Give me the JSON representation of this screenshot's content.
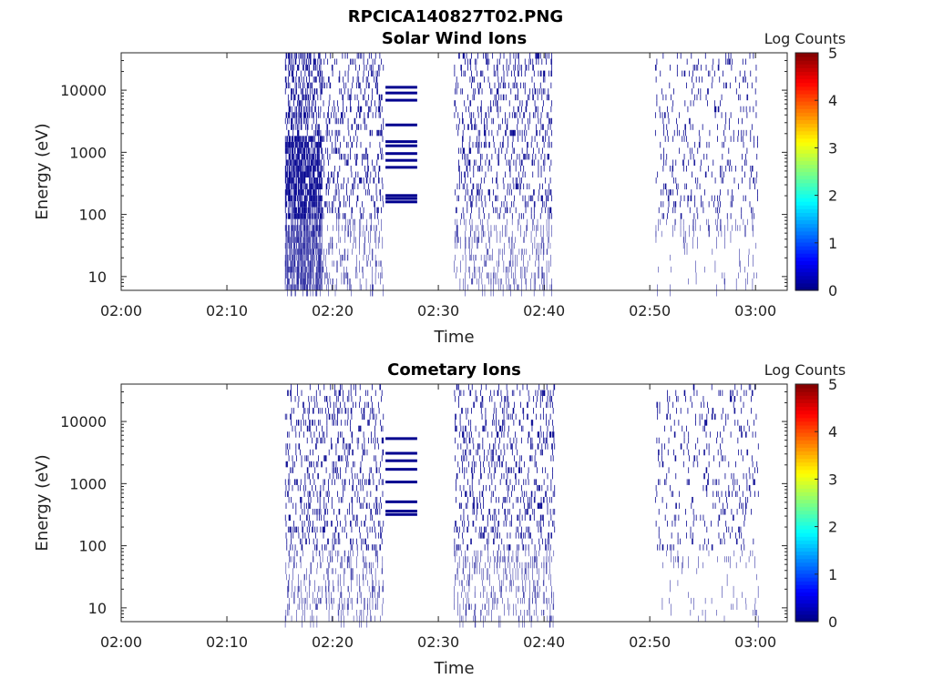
{
  "figure_title": "RPCICA140827T02.PNG",
  "chart_data": [
    {
      "type": "heatmap",
      "title": "Solar Wind Ions",
      "xlabel": "Time",
      "ylabel": "Energy (eV)",
      "x_ticks": [
        "02:00",
        "02:10",
        "02:20",
        "02:30",
        "02:40",
        "02:50",
        "03:00"
      ],
      "xlim": [
        "02:00",
        "03:03"
      ],
      "y_scale": "log",
      "y_ticks": [
        "10",
        "100",
        "1000",
        "10000"
      ],
      "ylim": [
        6,
        40000
      ],
      "colorbar": {
        "label": "Log Counts",
        "range": [
          0,
          5
        ],
        "ticks": [
          "0",
          "1",
          "2",
          "3",
          "4",
          "5"
        ]
      },
      "colormap": "jet",
      "dominant_color": "#00008f",
      "observed_count_intervals": [
        {
          "start": "02:15.5",
          "end": "02:24.8",
          "emin": 6,
          "emax": 40000,
          "density": "dense at 02:16-02:19, scattered after"
        },
        {
          "start": "02:25.0",
          "end": "02:28.0",
          "pattern": "fixed energy bands",
          "band_energies": [
            150,
            170,
            190,
            540,
            700,
            900,
            1200,
            1400,
            2600,
            6500,
            8500,
            10500
          ]
        },
        {
          "start": "02:31.5",
          "end": "02:40.8",
          "emin": 6,
          "emax": 40000,
          "density": "scattered"
        },
        {
          "start": "02:50.5",
          "end": "03:00.3",
          "emin": 6,
          "emax": 40000,
          "density": "sparse"
        }
      ],
      "max_log_counts_observed": 0.3
    },
    {
      "type": "heatmap",
      "title": "Cometary Ions",
      "xlabel": "Time",
      "ylabel": "Energy (eV)",
      "x_ticks": [
        "02:00",
        "02:10",
        "02:20",
        "02:30",
        "02:40",
        "02:50",
        "03:00"
      ],
      "xlim": [
        "02:00",
        "03:03"
      ],
      "y_scale": "log",
      "y_ticks": [
        "10",
        "100",
        "1000",
        "10000"
      ],
      "ylim": [
        6,
        40000
      ],
      "colorbar": {
        "label": "Log Counts",
        "range": [
          0,
          5
        ],
        "ticks": [
          "0",
          "1",
          "2",
          "3",
          "4",
          "5"
        ]
      },
      "colormap": "jet",
      "dominant_color": "#00008f",
      "observed_count_intervals": [
        {
          "start": "02:15.5",
          "end": "02:24.8",
          "emin": 6,
          "emax": 40000,
          "density": "scattered"
        },
        {
          "start": "02:25.0",
          "end": "02:28.0",
          "pattern": "fixed energy bands",
          "band_energies": [
            300,
            340,
            480,
            1000,
            1600,
            2200,
            2900,
            5000
          ]
        },
        {
          "start": "02:31.5",
          "end": "02:41.0",
          "emin": 6,
          "emax": 40000,
          "density": "scattered"
        },
        {
          "start": "02:50.5",
          "end": "03:00.3",
          "emin": 6,
          "emax": 40000,
          "density": "sparse"
        }
      ],
      "max_log_counts_observed": 0.3
    }
  ]
}
